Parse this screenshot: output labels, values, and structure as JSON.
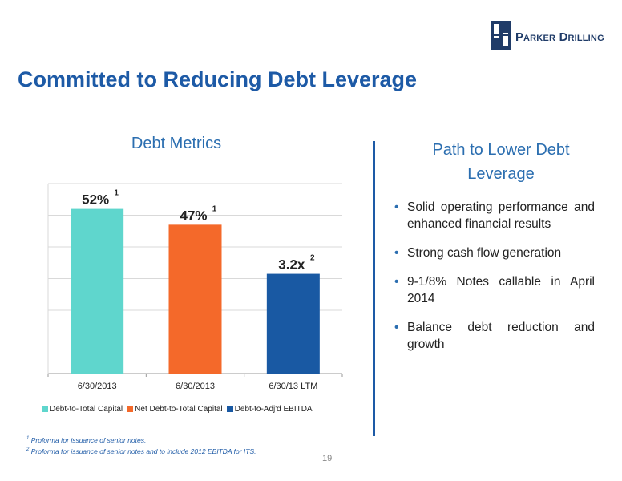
{
  "logo": {
    "text_initial_1": "P",
    "text_rest_1": "ARKER",
    "text_initial_2": "D",
    "text_rest_2": "RILLING"
  },
  "slide": {
    "title": "Committed to Reducing Debt Leverage",
    "page_number": "19"
  },
  "left_panel": {
    "heading": "Debt Metrics",
    "footnotes": [
      {
        "marker": "1",
        "text": "Proforma for issuance of senior notes."
      },
      {
        "marker": "2",
        "text": "Proforma for issuance of senior notes and to include 2012 EBITDA for ITS."
      }
    ]
  },
  "right_panel": {
    "heading": "Path to Lower Debt Leverage",
    "bullets": [
      "Solid operating performance and enhanced financial results",
      "Strong cash flow generation",
      "9-1/8% Notes callable in April 2014",
      "Balance debt reduction and growth"
    ]
  },
  "chart_data": {
    "type": "bar",
    "title": "Debt Metrics",
    "categories": [
      "6/30/2013",
      "6/30/2013",
      "6/30/13 LTM"
    ],
    "grid": true,
    "legend_position": "bottom",
    "series": [
      {
        "name": "Debt-to-Total Capital",
        "color": "#5fd6cd",
        "category_index": 0,
        "display_value": 52,
        "label": "52%",
        "superscript": "1"
      },
      {
        "name": "Net Debt-to-Total Capital",
        "color": "#f4692a",
        "category_index": 1,
        "display_value": 47,
        "label": "47%",
        "superscript": "1"
      },
      {
        "name": "Debt-to-Adj'd EBITDA",
        "color": "#1959a3",
        "category_index": 2,
        "display_value": 31.5,
        "label": "3.2x",
        "superscript": "2"
      }
    ],
    "ylim": [
      0,
      60
    ]
  }
}
